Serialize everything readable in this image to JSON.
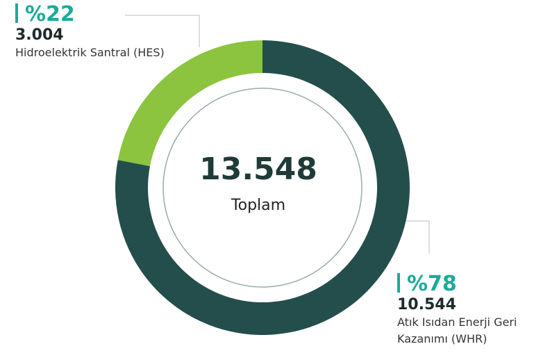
{
  "chart_data": {
    "type": "donut",
    "categories": [
      "Hidroelektrik Santral (HES)",
      "Atık Isıdan Enerji Geri Kazanımı (WHR)"
    ],
    "values": [
      22,
      78
    ],
    "value_labels": [
      "%22",
      "%78"
    ],
    "amounts": [
      {
        "value": 3004,
        "label": "3.004"
      },
      {
        "value": 10544,
        "label": "10.544"
      }
    ],
    "colors": [
      "#8cc43f",
      "#234e4b"
    ],
    "total": {
      "value": 13548,
      "label": "13.548"
    },
    "total_caption": "Toplam"
  }
}
